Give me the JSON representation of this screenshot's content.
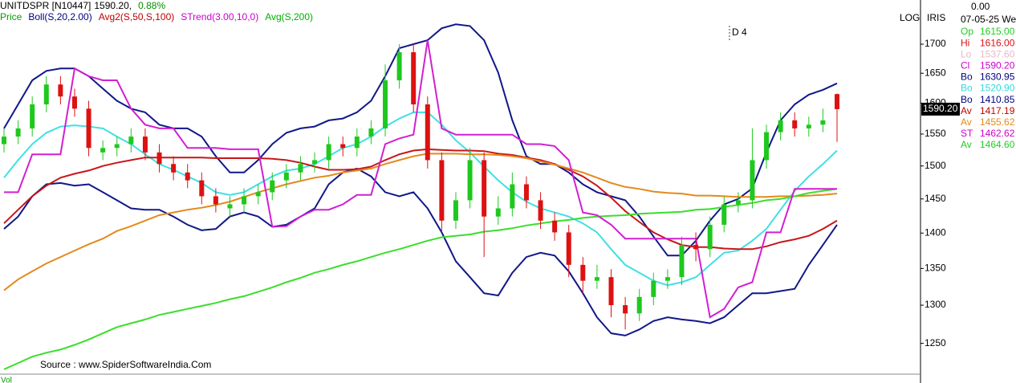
{
  "chart_data": {
    "type": "candlestick",
    "symbol": "UNITDSPR [N10447]",
    "last": "1590.20,",
    "change": "0.88%",
    "legend": [
      {
        "text": "Price",
        "color": "#00a000"
      },
      {
        "text": "Boll(S,20,2.00)",
        "color": "#000080"
      },
      {
        "text": "Avg2(S,50,S,100)",
        "color": "#c00000"
      },
      {
        "text": "STrend(3.00,10,0)",
        "color": "#cc00cc"
      },
      {
        "text": "Avg(S,200)",
        "color": "#00b000"
      }
    ],
    "annotation": "D 4",
    "source": "Source : www.SpiderSoftwareIndia.Com",
    "volume_label": "Vol",
    "scale_label": "LOG",
    "style_label": "IRIS",
    "price_tag": "1590.20",
    "log": true,
    "ylim": [
      1207,
      1779
    ],
    "yticks": [
      1250,
      1300,
      1350,
      1400,
      1450,
      1500,
      1550,
      1600,
      1650,
      1700
    ],
    "up_color": "#1ec81e",
    "down_color": "#dd1111",
    "candles": {
      "open": [
        1534,
        1546,
        1559,
        1598,
        1631,
        1611,
        1591,
        1521,
        1528,
        1534,
        1546,
        1521,
        1503,
        1490,
        1478,
        1454,
        1436,
        1442,
        1454,
        1460,
        1478,
        1490,
        1503,
        1509,
        1534,
        1528,
        1546,
        1559,
        1638,
        1686,
        1598,
        1509,
        1418,
        1448,
        1509,
        1424,
        1436,
        1472,
        1448,
        1418,
        1401,
        1355,
        1333,
        1338,
        1300,
        1289,
        1311,
        1333,
        1338,
        1383,
        1377,
        1412,
        1442,
        1448,
        1509,
        1553,
        1572,
        1559,
        1565,
        1615
      ],
      "high": [
        1559,
        1572,
        1611,
        1645,
        1645,
        1624,
        1604,
        1540,
        1546,
        1559,
        1559,
        1534,
        1515,
        1503,
        1490,
        1466,
        1454,
        1466,
        1472,
        1490,
        1503,
        1515,
        1521,
        1546,
        1546,
        1559,
        1572,
        1665,
        1700,
        1700,
        1611,
        1521,
        1460,
        1528,
        1521,
        1454,
        1490,
        1484,
        1460,
        1430,
        1412,
        1366,
        1355,
        1349,
        1311,
        1322,
        1344,
        1349,
        1395,
        1401,
        1424,
        1454,
        1460,
        1559,
        1565,
        1585,
        1585,
        1578,
        1591,
        1616
      ],
      "low": [
        1521,
        1534,
        1546,
        1585,
        1598,
        1578,
        1515,
        1509,
        1515,
        1521,
        1509,
        1490,
        1478,
        1466,
        1442,
        1430,
        1424,
        1430,
        1442,
        1448,
        1466,
        1478,
        1490,
        1496,
        1515,
        1515,
        1534,
        1546,
        1624,
        1585,
        1496,
        1401,
        1406,
        1436,
        1366,
        1412,
        1424,
        1436,
        1406,
        1389,
        1338,
        1316,
        1322,
        1284,
        1268,
        1279,
        1300,
        1322,
        1327,
        1360,
        1366,
        1401,
        1430,
        1436,
        1496,
        1540,
        1546,
        1546,
        1553,
        1537.6
      ],
      "close": [
        1546,
        1559,
        1598,
        1631,
        1611,
        1591,
        1528,
        1528,
        1534,
        1546,
        1521,
        1503,
        1490,
        1478,
        1454,
        1442,
        1442,
        1454,
        1460,
        1478,
        1490,
        1503,
        1509,
        1534,
        1528,
        1546,
        1559,
        1638,
        1686,
        1598,
        1509,
        1418,
        1448,
        1509,
        1424,
        1436,
        1472,
        1448,
        1418,
        1401,
        1355,
        1333,
        1338,
        1300,
        1289,
        1311,
        1333,
        1338,
        1383,
        1377,
        1412,
        1442,
        1448,
        1509,
        1553,
        1572,
        1559,
        1565,
        1572,
        1590.2
      ]
    },
    "lines": [
      {
        "color": "#111888",
        "values": [
          1559,
          1598,
          1638,
          1654,
          1658,
          1658,
          1645,
          1624,
          1604,
          1591,
          1585,
          1565,
          1559,
          1559,
          1546,
          1515,
          1490,
          1490,
          1509,
          1534,
          1552,
          1559,
          1562,
          1572,
          1575,
          1585,
          1604,
          1645,
          1693,
          1700,
          1707,
          1728,
          1735,
          1732,
          1707,
          1651,
          1572,
          1515,
          1503,
          1503,
          1490,
          1472,
          1460,
          1454,
          1448,
          1424,
          1395,
          1368,
          1368,
          1389,
          1418,
          1442,
          1450,
          1466,
          1521,
          1572,
          1598,
          1614,
          1622,
          1633
        ]
      },
      {
        "color": "#3fe0e6",
        "values": [
          1482,
          1509,
          1534,
          1552,
          1562,
          1564,
          1562,
          1559,
          1546,
          1534,
          1518,
          1503,
          1494,
          1484,
          1474,
          1460,
          1456,
          1460,
          1472,
          1484,
          1493,
          1496,
          1503,
          1515,
          1528,
          1534,
          1546,
          1562,
          1575,
          1585,
          1585,
          1565,
          1540,
          1521,
          1499,
          1478,
          1460,
          1446,
          1436,
          1430,
          1424,
          1414,
          1401,
          1377,
          1355,
          1344,
          1333,
          1327,
          1331,
          1338,
          1355,
          1372,
          1375,
          1389,
          1406,
          1434,
          1462,
          1484,
          1503,
          1524
        ]
      },
      {
        "color": "#111888",
        "values": [
          1406,
          1424,
          1454,
          1472,
          1474,
          1470,
          1472,
          1460,
          1448,
          1436,
          1434,
          1434,
          1424,
          1412,
          1404,
          1406,
          1424,
          1430,
          1424,
          1409,
          1412,
          1424,
          1436,
          1472,
          1490,
          1496,
          1484,
          1460,
          1454,
          1460,
          1436,
          1401,
          1360,
          1338,
          1316,
          1313,
          1344,
          1366,
          1372,
          1368,
          1346,
          1316,
          1284,
          1263,
          1260,
          1268,
          1279,
          1284,
          1281,
          1279,
          1276,
          1284,
          1300,
          1316,
          1316,
          1319,
          1322,
          1355,
          1383,
          1412
        ]
      },
      {
        "color": "#c8161a",
        "values": [
          1414,
          1434,
          1454,
          1470,
          1482,
          1488,
          1493,
          1500,
          1505,
          1509,
          1513,
          1513,
          1513,
          1513,
          1513,
          1512,
          1512,
          1512,
          1512,
          1511,
          1509,
          1505,
          1499,
          1494,
          1494,
          1495,
          1499,
          1509,
          1518,
          1524,
          1526,
          1525,
          1524,
          1524,
          1523,
          1519,
          1517,
          1513,
          1509,
          1503,
          1494,
          1484,
          1470,
          1452,
          1432,
          1416,
          1401,
          1391,
          1383,
          1380,
          1380,
          1378,
          1377,
          1377,
          1381,
          1387,
          1391,
          1396,
          1406,
          1418
        ]
      },
      {
        "color": "#e38a1c",
        "values": [
          1320,
          1335,
          1346,
          1357,
          1366,
          1375,
          1384,
          1392,
          1403,
          1410,
          1418,
          1426,
          1430,
          1434,
          1437,
          1441,
          1446,
          1453,
          1460,
          1466,
          1472,
          1477,
          1482,
          1485,
          1490,
          1493,
          1496,
          1503,
          1509,
          1515,
          1519,
          1519,
          1519,
          1518,
          1518,
          1517,
          1515,
          1512,
          1507,
          1502,
          1496,
          1490,
          1482,
          1474,
          1468,
          1465,
          1461,
          1459,
          1458,
          1455,
          1455,
          1454,
          1453,
          1453,
          1453,
          1454,
          1454,
          1455,
          1456,
          1458
        ]
      },
      {
        "color": "#3ade2c",
        "values": [
          1217,
          1225,
          1233,
          1238,
          1242,
          1248,
          1255,
          1263,
          1271,
          1276,
          1281,
          1287,
          1291,
          1295,
          1299,
          1303,
          1308,
          1312,
          1318,
          1324,
          1331,
          1337,
          1344,
          1349,
          1355,
          1360,
          1366,
          1372,
          1377,
          1383,
          1389,
          1394,
          1396,
          1398,
          1402,
          1404,
          1407,
          1411,
          1414,
          1417,
          1419,
          1422,
          1424,
          1425,
          1426,
          1428,
          1429,
          1430,
          1431,
          1434,
          1435,
          1438,
          1441,
          1444,
          1448,
          1450,
          1454,
          1459,
          1462,
          1465
        ]
      },
      {
        "color": "#d21fd2",
        "values": [
          1460,
          1460,
          1518,
          1518,
          1518,
          1658,
          1645,
          1638,
          1638,
          1591,
          1565,
          1559,
          1559,
          1528,
          1528,
          1528,
          1526,
          1526,
          1526,
          1409,
          1410,
          1424,
          1434,
          1434,
          1442,
          1456,
          1456,
          1534,
          1543,
          1549,
          1707,
          1559,
          1549,
          1549,
          1549,
          1549,
          1549,
          1534,
          1534,
          1531,
          1509,
          1430,
          1426,
          1412,
          1392,
          1392,
          1392,
          1392,
          1392,
          1392,
          1284,
          1295,
          1324,
          1331,
          1401,
          1401,
          1465,
          1465,
          1465,
          1465
        ]
      }
    ],
    "panel_top": "0.00",
    "panel_date": "07-05-25 We",
    "panel": [
      {
        "label": "Op",
        "value": "1615.00",
        "color": "#22cc22"
      },
      {
        "label": "Hi",
        "value": "1616.00",
        "color": "#dd1111"
      },
      {
        "label": "Lo",
        "value": "1537.60",
        "color": "#e8b8c8"
      },
      {
        "label": "Cl",
        "value": "1590.20",
        "color": "#cc00cc"
      },
      {
        "label": "Bo",
        "value": "1630.95",
        "color": "#000080"
      },
      {
        "label": "Bo",
        "value": "1520.90",
        "color": "#30d8e0"
      },
      {
        "label": "Bo",
        "value": "1410.85",
        "color": "#000080"
      },
      {
        "label": "Av",
        "value": "1417.19",
        "color": "#c00000"
      },
      {
        "label": "Av",
        "value": "1455.62",
        "color": "#e08a1a"
      },
      {
        "label": "ST",
        "value": "1462.62",
        "color": "#cc00cc"
      },
      {
        "label": "Av",
        "value": "1464.60",
        "color": "#22cc22"
      }
    ]
  }
}
